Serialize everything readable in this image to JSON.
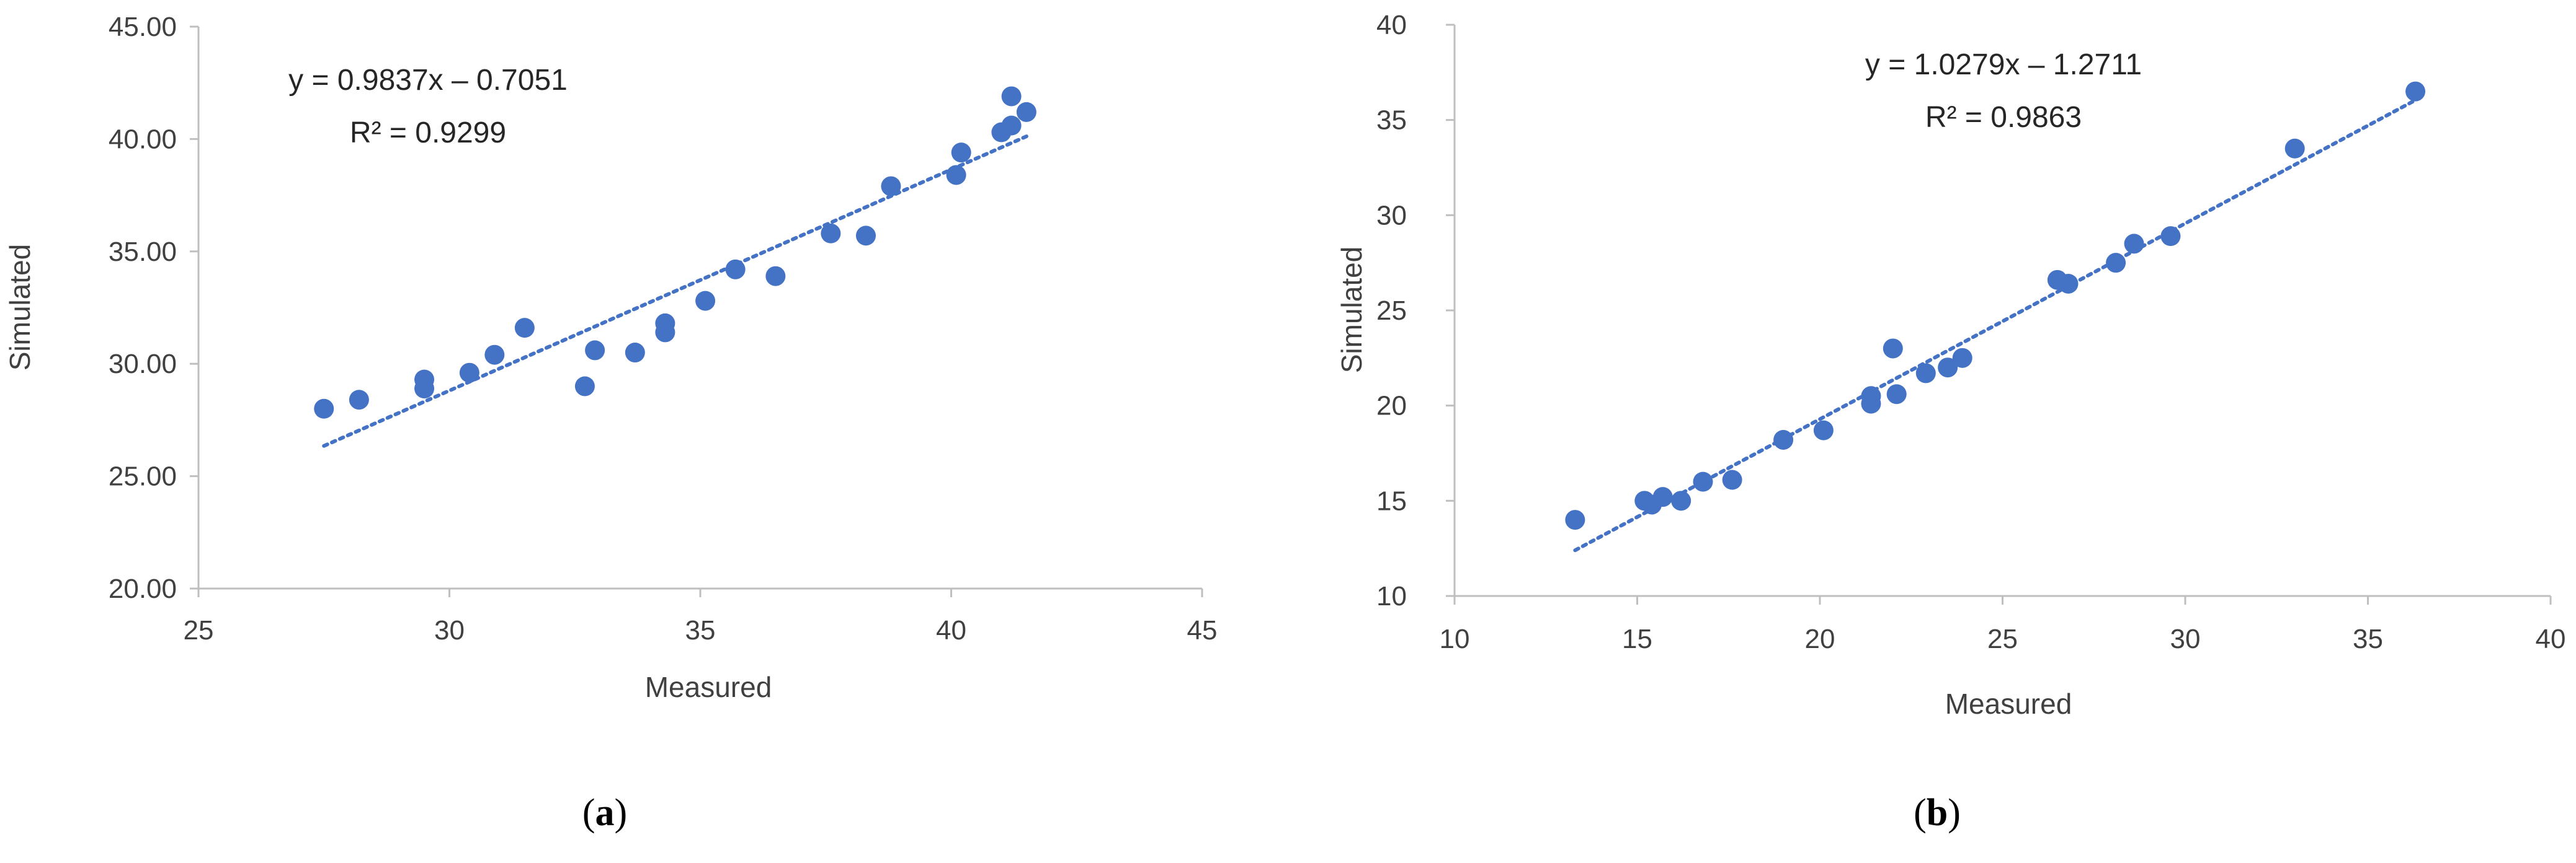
{
  "chart_data": [
    {
      "type": "scatter",
      "panel_label": "a",
      "xlabel": "Measured",
      "ylabel": "Simulated",
      "xlim": [
        25,
        45
      ],
      "ylim": [
        20,
        45
      ],
      "xticks": [
        "25",
        "30",
        "35",
        "40",
        "45"
      ],
      "yticks": [
        "20.00",
        "25.00",
        "30.00",
        "35.00",
        "40.00",
        "45.00"
      ],
      "grid": false,
      "marker_color": "#4472C4",
      "trendline": {
        "style": "dotted",
        "color": "#4472C4",
        "slope": 0.9837,
        "intercept": -0.7051,
        "x_range": [
          27.5,
          41.5
        ],
        "equation_label": "y = 0.9837x – 0.7051",
        "r2_label": "R² = 0.9299"
      },
      "points": [
        [
          27.5,
          28.0
        ],
        [
          28.2,
          28.4
        ],
        [
          29.5,
          28.9
        ],
        [
          29.5,
          29.3
        ],
        [
          30.4,
          29.6
        ],
        [
          30.9,
          30.4
        ],
        [
          31.5,
          31.6
        ],
        [
          32.7,
          29.0
        ],
        [
          32.9,
          30.6
        ],
        [
          33.7,
          30.5
        ],
        [
          34.3,
          31.4
        ],
        [
          34.3,
          31.8
        ],
        [
          35.1,
          32.8
        ],
        [
          35.7,
          34.2
        ],
        [
          36.5,
          33.9
        ],
        [
          37.6,
          35.8
        ],
        [
          38.3,
          35.7
        ],
        [
          38.8,
          37.9
        ],
        [
          40.1,
          38.4
        ],
        [
          40.2,
          39.4
        ],
        [
          41.0,
          40.3
        ],
        [
          41.2,
          40.6
        ],
        [
          41.2,
          41.9
        ],
        [
          41.5,
          41.2
        ]
      ]
    },
    {
      "type": "scatter",
      "panel_label": "b",
      "xlabel": "Measured",
      "ylabel": "Simulated",
      "xlim": [
        10,
        40
      ],
      "ylim": [
        10,
        40
      ],
      "xticks": [
        "10",
        "15",
        "20",
        "25",
        "30",
        "35",
        "40"
      ],
      "yticks": [
        "10",
        "15",
        "20",
        "25",
        "30",
        "35",
        "40"
      ],
      "grid": false,
      "marker_color": "#4472C4",
      "trendline": {
        "style": "dotted",
        "color": "#4472C4",
        "slope": 1.0279,
        "intercept": -1.2711,
        "x_range": [
          13.3,
          36.4
        ],
        "equation_label": "y = 1.0279x – 1.2711",
        "r2_label": "R² = 0.9863"
      },
      "points": [
        [
          13.3,
          14.0
        ],
        [
          15.2,
          15.0
        ],
        [
          15.4,
          14.8
        ],
        [
          15.7,
          15.2
        ],
        [
          16.2,
          15.0
        ],
        [
          16.8,
          16.0
        ],
        [
          17.6,
          16.1
        ],
        [
          19.0,
          18.2
        ],
        [
          20.1,
          18.7
        ],
        [
          21.4,
          20.1
        ],
        [
          21.4,
          20.5
        ],
        [
          22.0,
          23.0
        ],
        [
          22.1,
          20.6
        ],
        [
          22.9,
          21.7
        ],
        [
          23.5,
          22.0
        ],
        [
          23.9,
          22.5
        ],
        [
          26.5,
          26.6
        ],
        [
          26.8,
          26.4
        ],
        [
          28.1,
          27.5
        ],
        [
          28.6,
          28.5
        ],
        [
          29.6,
          28.9
        ],
        [
          33.0,
          33.5
        ],
        [
          36.3,
          36.5
        ]
      ]
    }
  ]
}
